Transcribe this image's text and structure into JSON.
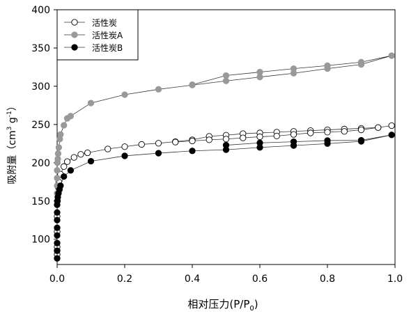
{
  "chart_data": {
    "type": "line",
    "xlabel": "相对压力(P/P",
    "xlabel_sub": "0",
    "xlabel_end": ")",
    "ylabel": "吸附量（cm",
    "ylabel_sup1": "3",
    "ylabel_mid": " g",
    "ylabel_sup2": "-1",
    "ylabel_end": "）",
    "xlim": [
      0,
      1.0
    ],
    "ylim": [
      67,
      400
    ],
    "xticks": [
      "0.0",
      "0.2",
      "0.4",
      "0.6",
      "0.8",
      "1.0"
    ],
    "yticks": [
      "100",
      "150",
      "200",
      "250",
      "300",
      "350",
      "400"
    ],
    "grid": false,
    "legend_position": "top-left",
    "series": [
      {
        "name": "活性炭",
        "marker": "open-circle",
        "color": "#000000",
        "fill": "#ffffff",
        "x": [
          0,
          0,
          0,
          0,
          0,
          0.001,
          0.002,
          0.003,
          0.005,
          0.01,
          0.02,
          0.03,
          0.05,
          0.07,
          0.09,
          0.15,
          0.2,
          0.25,
          0.3,
          0.35,
          0.4,
          0.45,
          0.5,
          0.55,
          0.6,
          0.65,
          0.7,
          0.75,
          0.8,
          0.85,
          0.9,
          0.95,
          0.99,
          0.95,
          0.9,
          0.85,
          0.8,
          0.75,
          0.7,
          0.65,
          0.6,
          0.55,
          0.5,
          0.45,
          0.4,
          0.35
        ],
        "y": [
          80,
          85,
          90,
          110,
          130,
          150,
          160,
          168,
          175,
          185,
          195,
          201.5,
          207,
          211,
          213,
          218,
          221,
          224,
          225.5,
          227.6,
          230,
          234.5,
          236,
          238,
          239,
          240,
          241,
          242,
          243,
          244,
          245,
          246,
          248.5,
          246,
          243,
          241,
          240,
          239,
          237,
          235,
          234,
          232.5,
          231,
          230,
          228.5,
          227
        ]
      },
      {
        "name": "活性炭A",
        "marker": "filled-circle",
        "color": "#999999",
        "fill": "#999999",
        "x": [
          0,
          0,
          0,
          0,
          0.001,
          0.002,
          0.003,
          0.005,
          0.008,
          0.01,
          0.02,
          0.03,
          0.04,
          0.1,
          0.2,
          0.3,
          0.4,
          0.5,
          0.6,
          0.7,
          0.8,
          0.9,
          0.99,
          0.9,
          0.8,
          0.7,
          0.6,
          0.5,
          0.4
        ],
        "y": [
          160,
          170,
          180,
          190,
          200,
          205,
          212,
          220,
          231,
          237,
          249,
          258,
          261,
          278,
          289,
          296,
          301.5,
          307,
          312,
          317,
          323,
          328.5,
          340,
          331.5,
          327,
          323,
          318.5,
          314,
          302
        ]
      },
      {
        "name": "活性炭B",
        "marker": "filled-circle",
        "color": "#000000",
        "fill": "#000000",
        "x": [
          0,
          0,
          0,
          0,
          0,
          0,
          0,
          0,
          0.001,
          0.002,
          0.004,
          0.007,
          0.01,
          0.02,
          0.04,
          0.1,
          0.2,
          0.3,
          0.4,
          0.5,
          0.6,
          0.7,
          0.8,
          0.9,
          0.99,
          0.9,
          0.8,
          0.7,
          0.6,
          0.5
        ],
        "y": [
          75,
          85,
          95,
          105,
          115,
          125,
          135,
          145,
          150,
          155,
          160,
          165,
          170,
          182,
          190,
          202,
          209,
          212.5,
          215.5,
          217,
          220,
          222.5,
          225,
          228,
          236.4,
          229.4,
          229,
          227.5,
          226,
          223
        ]
      }
    ]
  }
}
